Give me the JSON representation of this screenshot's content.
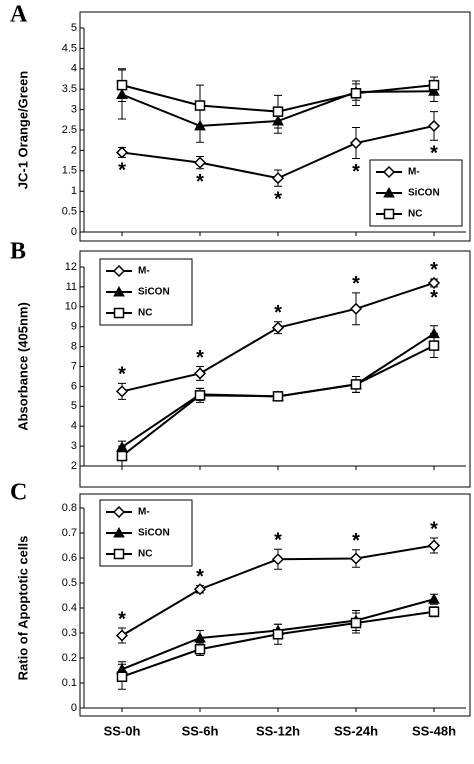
{
  "chart_data": [
    {
      "type": "line",
      "panel": "A",
      "y_label": "JC-1 Orange/Green",
      "ylim": [
        0,
        5
      ],
      "yticks": [
        0,
        0.5,
        1,
        1.5,
        2,
        2.5,
        3,
        3.5,
        4,
        4.5,
        5
      ],
      "legend": "bottom-right",
      "significance": [
        "*",
        "*",
        "*",
        "*",
        "*"
      ],
      "significance_position": "below",
      "series": [
        {
          "name": "M-",
          "color": "#000000",
          "marker": "diamond",
          "values": [
            1.95,
            1.7,
            1.32,
            2.18,
            2.6
          ],
          "errors": [
            0.12,
            0.15,
            0.2,
            0.38,
            0.35
          ]
        },
        {
          "name": "SiCON",
          "color": "#000000",
          "marker": "triangle",
          "values": [
            3.37,
            2.6,
            2.72,
            3.43,
            3.45
          ],
          "errors": [
            0.6,
            0.4,
            0.3,
            0.2,
            0.25
          ]
        },
        {
          "name": "NC",
          "color": "#000000",
          "marker": "square",
          "values": [
            3.6,
            3.1,
            2.95,
            3.4,
            3.6
          ],
          "errors": [
            0.4,
            0.5,
            0.4,
            0.3,
            0.2
          ]
        }
      ]
    },
    {
      "type": "line",
      "panel": "B",
      "y_label": "Absorbance (405nm)",
      "ylim": [
        2,
        12
      ],
      "yticks": [
        2,
        3,
        4,
        5,
        6,
        7,
        8,
        9,
        10,
        11,
        12
      ],
      "legend": "top-left",
      "significance": [
        "*",
        "*",
        "*",
        "*",
        "*"
      ],
      "significance_position": "above",
      "significance_below": [
        null,
        null,
        null,
        null,
        "*"
      ],
      "series": [
        {
          "name": "M-",
          "color": "#000000",
          "marker": "diamond",
          "values": [
            5.75,
            6.65,
            8.95,
            9.9,
            11.2
          ],
          "errors": [
            0.4,
            0.35,
            0.3,
            0.8,
            0.2
          ]
        },
        {
          "name": "SiCON",
          "color": "#000000",
          "marker": "triangle",
          "values": [
            2.95,
            5.6,
            5.5,
            6.1,
            8.65
          ],
          "errors": [
            0.3,
            0.3,
            0.15,
            0.4,
            0.4
          ]
        },
        {
          "name": "NC",
          "color": "#000000",
          "marker": "square",
          "values": [
            2.5,
            5.55,
            5.5,
            6.1,
            8.05
          ],
          "errors": [
            0.5,
            0.35,
            0.15,
            0.4,
            0.6
          ]
        }
      ]
    },
    {
      "type": "line",
      "panel": "C",
      "y_label": "Ratio of Apoptotic cells",
      "categories": [
        "SS-0h",
        "SS-6h",
        "SS-12h",
        "SS-24h",
        "SS-48h"
      ],
      "ylim": [
        0,
        0.8
      ],
      "yticks": [
        0,
        0.1,
        0.2,
        0.3,
        0.4,
        0.5,
        0.6,
        0.7,
        0.8
      ],
      "legend": "top-left",
      "significance": [
        "*",
        "*",
        "*",
        "*",
        "*"
      ],
      "significance_position": "above",
      "series": [
        {
          "name": "M-",
          "color": "#000000",
          "marker": "diamond",
          "values": [
            0.29,
            0.475,
            0.595,
            0.598,
            0.65
          ],
          "errors": [
            0.03,
            0.015,
            0.04,
            0.035,
            0.03
          ]
        },
        {
          "name": "SiCON",
          "color": "#000000",
          "marker": "triangle",
          "values": [
            0.155,
            0.28,
            0.31,
            0.35,
            0.435
          ],
          "errors": [
            0.03,
            0.03,
            0.025,
            0.04,
            0.02
          ]
        },
        {
          "name": "NC",
          "color": "#000000",
          "marker": "square",
          "values": [
            0.125,
            0.235,
            0.295,
            0.34,
            0.385
          ],
          "errors": [
            0.05,
            0.025,
            0.04,
            0.04,
            0.02
          ]
        }
      ]
    }
  ]
}
